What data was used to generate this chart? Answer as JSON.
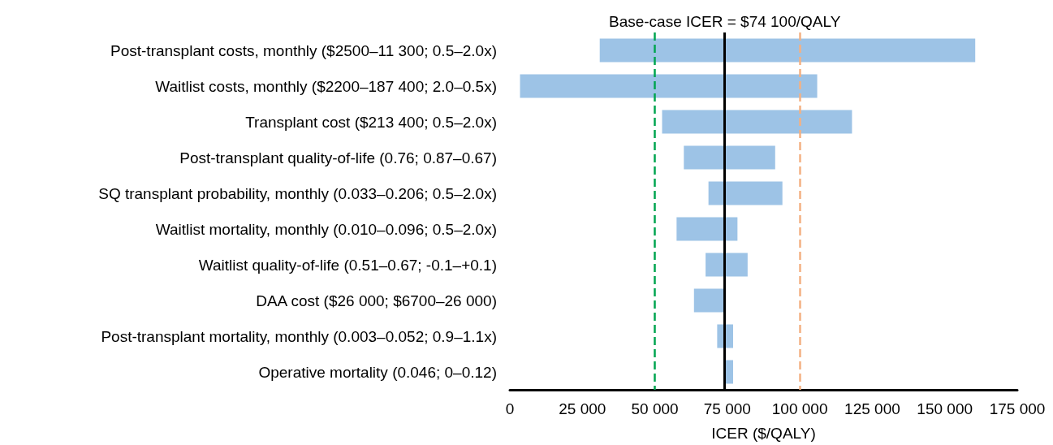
{
  "chart_data": {
    "type": "bar",
    "orientation": "horizontal",
    "xlabel": "ICER ($/QALY)",
    "categories": [
      "Post-transplant costs, monthly ($2500–11 300; 0.5–2.0x)",
      "Waitlist costs, monthly ($2200–187 400; 2.0–0.5x)",
      "Transplant cost ($213 400; 0.5–2.0x)",
      "Post-transplant quality-of-life (0.76; 0.87–0.67)",
      "SQ transplant probability, monthly (0.033–0.206; 0.5–2.0x)",
      "Waitlist mortality, monthly (0.010–0.096; 0.5–2.0x)",
      "Waitlist quality-of-life (0.51–0.67; -0.1–+0.1)",
      "DAA cost ($26 000; $6700–26 000)",
      "Post-transplant mortality, monthly (0.003–0.052; 0.9–1.1x)",
      "Operative mortality (0.046; 0–0.12)"
    ],
    "base": [
      31000,
      3500,
      52500,
      60000,
      68500,
      57500,
      67500,
      63500,
      71500,
      74100
    ],
    "values": [
      129500,
      102500,
      65500,
      31500,
      25500,
      21000,
      14500,
      10600,
      5500,
      2900
    ],
    "color": "#9dc3e6",
    "xlim": [
      0,
      175000
    ],
    "xticks": [
      0,
      {
        "value": 25000,
        "label": "25 000"
      },
      {
        "value": 50000,
        "label": "50 000"
      },
      {
        "value": 75000,
        "label": "75 000"
      },
      {
        "value": 100000,
        "label": "100 000"
      },
      {
        "value": 125000,
        "label": "125 000"
      },
      {
        "value": 150000,
        "label": "150 000"
      },
      {
        "value": 175000,
        "label": "175 000"
      }
    ],
    "ref_lines": [
      {
        "axis": "x",
        "value": 74100,
        "label": "Base-case ICER = $74 100/QALY",
        "color": "#000000",
        "line_style": "solid"
      },
      {
        "axis": "x",
        "value": 50000,
        "color": "#00a550",
        "line_style": "dashed"
      },
      {
        "axis": "x",
        "value": 100000,
        "color": "#f4b183",
        "line_style": "dashed"
      }
    ],
    "grid": false
  }
}
